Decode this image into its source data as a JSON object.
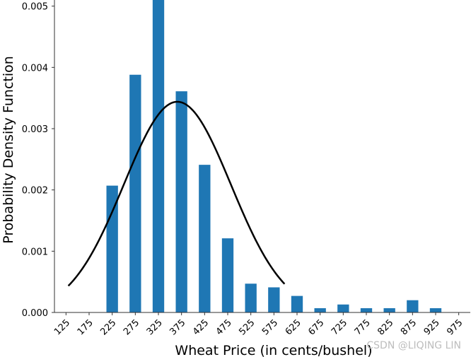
{
  "chart_data": {
    "type": "bar",
    "xlabel": "Wheat Price (in cents/bushel)",
    "ylabel": "Probability Density Function",
    "x_ticks": [
      125,
      175,
      225,
      275,
      325,
      375,
      425,
      475,
      525,
      575,
      625,
      675,
      725,
      775,
      825,
      875,
      925,
      975
    ],
    "y_ticks": [
      "0.000",
      "0.001",
      "0.002",
      "0.003",
      "0.004",
      "0.005"
    ],
    "xlim": [
      100,
      1000
    ],
    "ylim": [
      0,
      0.0051
    ],
    "bar_color": "#1f77b4",
    "bar_width": 25,
    "bars": [
      {
        "x": 225,
        "value": 0.00207
      },
      {
        "x": 275,
        "value": 0.00388
      },
      {
        "x": 325,
        "value": 0.0051
      },
      {
        "x": 375,
        "value": 0.00361
      },
      {
        "x": 425,
        "value": 0.00241
      },
      {
        "x": 475,
        "value": 0.00121
      },
      {
        "x": 525,
        "value": 0.00047
      },
      {
        "x": 575,
        "value": 0.00041
      },
      {
        "x": 625,
        "value": 0.00027
      },
      {
        "x": 675,
        "value": 7e-05
      },
      {
        "x": 725,
        "value": 0.00013
      },
      {
        "x": 775,
        "value": 7e-05
      },
      {
        "x": 825,
        "value": 7e-05
      },
      {
        "x": 875,
        "value": 0.0002
      },
      {
        "x": 925,
        "value": 7e-05
      }
    ],
    "curve": {
      "type": "normal-pdf",
      "color": "#000000",
      "mean": 366,
      "std": 116,
      "x_range": [
        130,
        598
      ]
    },
    "grid": false
  },
  "watermark": "CSDN @LIQING LIN"
}
